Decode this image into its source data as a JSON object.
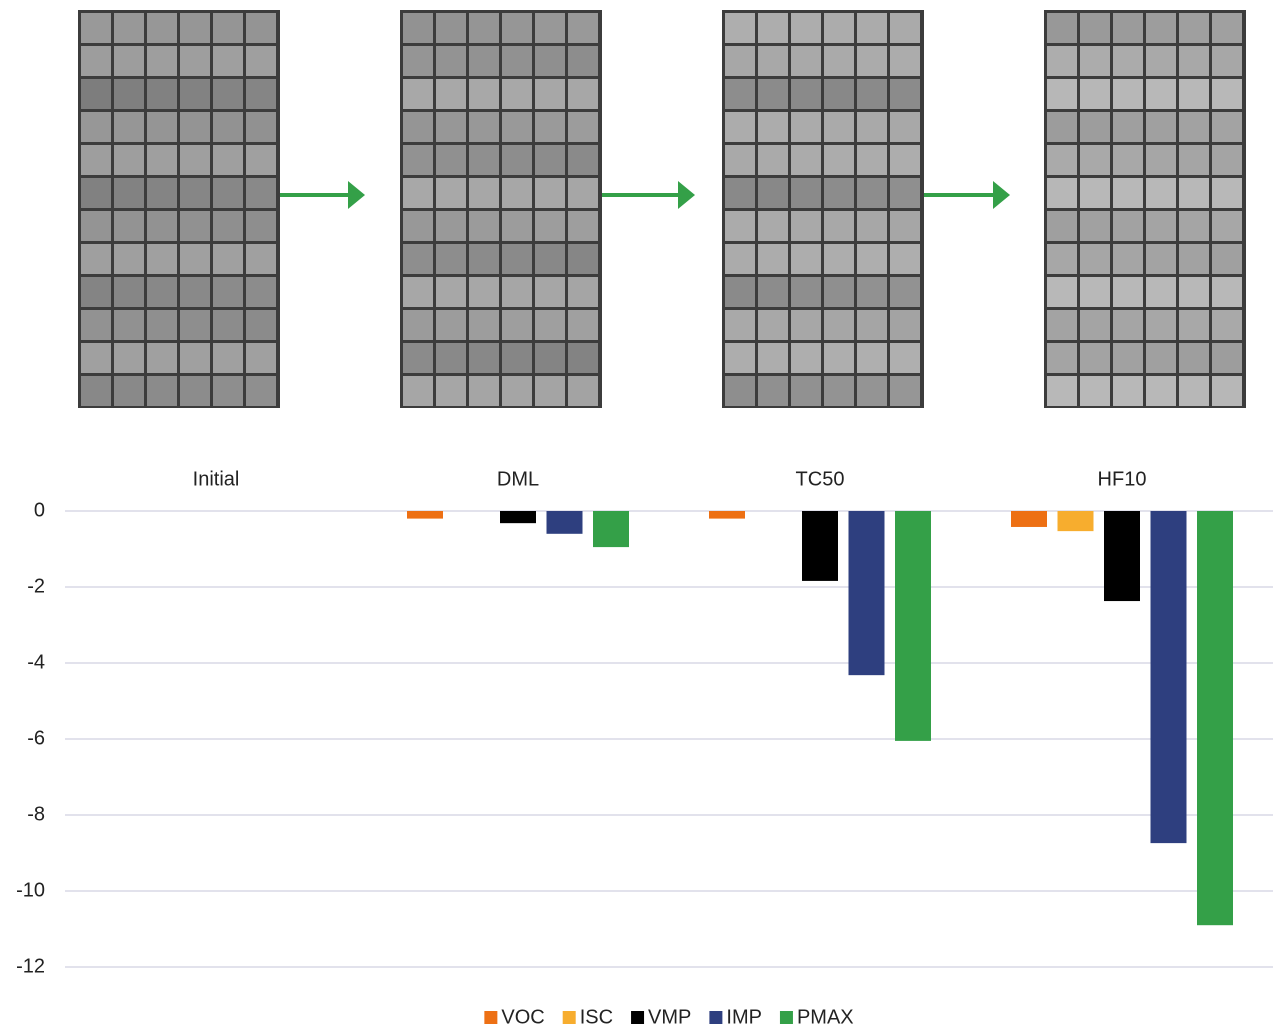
{
  "chart_data": {
    "type": "bar",
    "categories": [
      "Initial",
      "DML",
      "TC50",
      "HF10"
    ],
    "series": [
      {
        "name": "VOC",
        "color": "#ed7014",
        "values": [
          0,
          -0.2,
          -0.2,
          -0.42
        ]
      },
      {
        "name": "ISC",
        "color": "#f7ad2e",
        "values": [
          0,
          0,
          0,
          -0.53
        ]
      },
      {
        "name": "VMP",
        "color": "#000000",
        "values": [
          0,
          -0.32,
          -1.84,
          -2.37
        ]
      },
      {
        "name": "IMP",
        "color": "#2e3f7f",
        "values": [
          0,
          -0.6,
          -4.32,
          -8.74
        ]
      },
      {
        "name": "PMAX",
        "color": "#34a048",
        "values": [
          0,
          -0.95,
          -6.05,
          -10.9
        ]
      }
    ],
    "ylim": [
      -12,
      0
    ],
    "yticks": [
      0,
      -2,
      -4,
      -6,
      -8,
      -10,
      -12
    ],
    "grid": true,
    "legend": "bottom"
  }
}
